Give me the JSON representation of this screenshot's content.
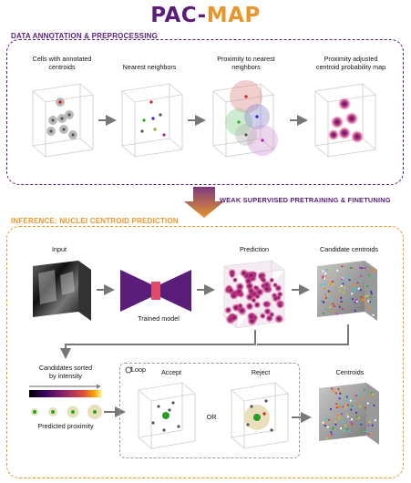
{
  "title": {
    "part1": "PAC-",
    "part2": "MAP"
  },
  "colors": {
    "purple": "#5a1d7a",
    "orange": "#e8962c",
    "grey_arrow": "#7a7a7a"
  },
  "annotation_section": {
    "heading": "DATA ANNOTATION & PREPROCESSING",
    "panels": [
      {
        "label_line1": "Cells with annotated",
        "label_line2": "centroids"
      },
      {
        "label_line1": "Nearest neighbors",
        "label_line2": ""
      },
      {
        "label_line1": "Proximity to nearest",
        "label_line2": "neighbors"
      },
      {
        "label_line1": "Proximity adjusted",
        "label_line2": "centroid probability map"
      }
    ]
  },
  "transition": {
    "label": "WEAK SUPERVISED PRETRAINING & FINETUNING"
  },
  "inference_section": {
    "heading": "INFERENCE: NUCLEI CENTROID PREDICTION",
    "input_label": "Input",
    "model_label": "Trained model",
    "prediction_label": "Prediction",
    "candidates_label": "Candidate centroids",
    "sorted_line1": "Candidates sorted",
    "sorted_line2": "by intensity",
    "predicted_proximity": "Predicted proximity",
    "loop_label": "Loop",
    "accept_label": "Accept",
    "or_label": "OR",
    "reject_label": "Reject",
    "centroids_label": "Centroids"
  }
}
